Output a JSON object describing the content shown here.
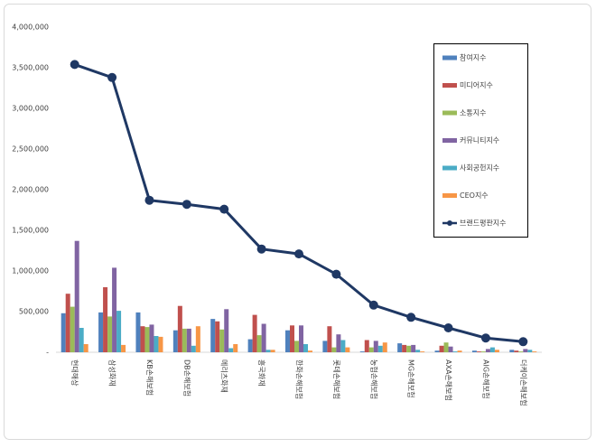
{
  "chart_data": {
    "type": "bar-line",
    "categories": [
      "현대해상",
      "삼성화재",
      "KB손해보험",
      "DB손해보험",
      "메리츠화재",
      "흥국화재",
      "한화손해보험",
      "롯데손해보험",
      "농협손해보험",
      "MG손해보험",
      "AXA손해보험",
      "AIG손해보험",
      "더케이손해보험"
    ],
    "series": [
      {
        "name": "참여지수",
        "color": "#4f81bd",
        "values": [
          480000,
          490000,
          490000,
          270000,
          410000,
          160000,
          270000,
          140000,
          10000,
          110000,
          20000,
          20000,
          30000
        ]
      },
      {
        "name": "미디어지수",
        "color": "#c0504d",
        "values": [
          720000,
          800000,
          320000,
          570000,
          380000,
          460000,
          330000,
          320000,
          150000,
          90000,
          80000,
          10000,
          20000
        ]
      },
      {
        "name": "소통지수",
        "color": "#9bbb59",
        "values": [
          560000,
          440000,
          310000,
          290000,
          280000,
          210000,
          140000,
          60000,
          60000,
          80000,
          120000,
          10000,
          10000
        ]
      },
      {
        "name": "커뮤니티지수",
        "color": "#8064a2",
        "values": [
          1370000,
          1040000,
          340000,
          290000,
          530000,
          350000,
          330000,
          220000,
          140000,
          90000,
          70000,
          40000,
          40000
        ]
      },
      {
        "name": "사회공헌지수",
        "color": "#4bacc6",
        "values": [
          300000,
          510000,
          200000,
          80000,
          50000,
          30000,
          100000,
          150000,
          80000,
          30000,
          10000,
          60000,
          30000
        ]
      },
      {
        "name": "CEO지수",
        "color": "#f79646",
        "values": [
          100000,
          90000,
          190000,
          320000,
          100000,
          30000,
          20000,
          60000,
          120000,
          10000,
          20000,
          30000,
          10000
        ]
      },
      {
        "name": "브랜드평판지수",
        "color": "#1f3864",
        "kind": "line",
        "values": [
          3540000,
          3380000,
          1870000,
          1820000,
          1760000,
          1270000,
          1210000,
          960000,
          580000,
          430000,
          300000,
          175000,
          130000
        ]
      }
    ],
    "ylim": [
      0,
      4000000
    ],
    "yticks": [
      {
        "value": 0,
        "label": "-"
      },
      {
        "value": 500000,
        "label": "500,000"
      },
      {
        "value": 1000000,
        "label": "1,000,000"
      },
      {
        "value": 1500000,
        "label": "1,500,000"
      },
      {
        "value": 2000000,
        "label": "2,000,000"
      },
      {
        "value": 2500000,
        "label": "2,500,000"
      },
      {
        "value": 3000000,
        "label": "3,000,000"
      },
      {
        "value": 3500000,
        "label": "3,500,000"
      },
      {
        "value": 4000000,
        "label": "4,000,000"
      }
    ],
    "grid": false,
    "legend": "right"
  }
}
